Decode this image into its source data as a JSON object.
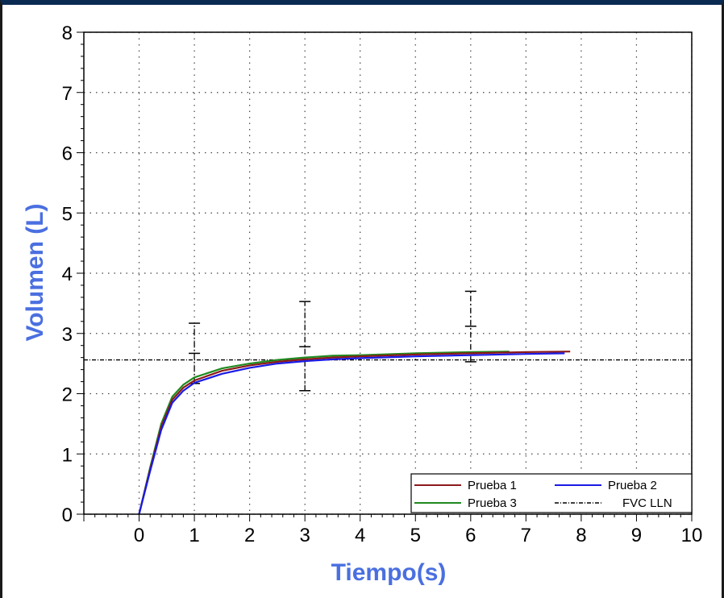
{
  "chart_data": {
    "type": "line",
    "xlabel": "Tiempo(s)",
    "ylabel": "Volumen (L)",
    "xlim": [
      -1,
      10
    ],
    "ylim": [
      0,
      8
    ],
    "x_ticks": [
      "0",
      "1",
      "2",
      "3",
      "4",
      "5",
      "6",
      "7",
      "8",
      "9",
      "10"
    ],
    "y_ticks": [
      "0",
      "1",
      "2",
      "3",
      "4",
      "5",
      "6",
      "7",
      "8"
    ],
    "grid": true,
    "legend_position": "bottom-right",
    "series": [
      {
        "name": "Prueba 1",
        "color": "#8b1a1a",
        "x": [
          0,
          0.2,
          0.4,
          0.6,
          0.8,
          1.0,
          1.5,
          2.0,
          2.5,
          3.0,
          3.5,
          4.0,
          5.0,
          6.0,
          7.0,
          7.8
        ],
        "y": [
          0,
          0.75,
          1.45,
          1.9,
          2.1,
          2.22,
          2.38,
          2.47,
          2.53,
          2.57,
          2.6,
          2.62,
          2.65,
          2.67,
          2.69,
          2.7
        ]
      },
      {
        "name": "Prueba 2",
        "color": "#1a1ae6",
        "x": [
          0,
          0.2,
          0.4,
          0.6,
          0.8,
          1.0,
          1.5,
          2.0,
          2.5,
          3.0,
          3.5,
          4.0,
          5.0,
          6.0,
          7.0,
          7.7
        ],
        "y": [
          0,
          0.72,
          1.4,
          1.85,
          2.05,
          2.18,
          2.33,
          2.43,
          2.5,
          2.54,
          2.57,
          2.59,
          2.62,
          2.64,
          2.66,
          2.67
        ]
      },
      {
        "name": "Prueba 3",
        "color": "#1f8a1f",
        "x": [
          0,
          0.2,
          0.4,
          0.6,
          0.8,
          1.0,
          1.5,
          2.0,
          2.5,
          3.0,
          3.5,
          4.0,
          5.0,
          6.0,
          6.7
        ],
        "y": [
          0,
          0.78,
          1.5,
          1.95,
          2.15,
          2.27,
          2.42,
          2.5,
          2.56,
          2.6,
          2.63,
          2.64,
          2.67,
          2.69,
          2.7
        ]
      },
      {
        "name": "FVC LLN",
        "color": "#000000",
        "x": [
          -1,
          10
        ],
        "y": [
          2.56,
          2.56
        ]
      }
    ],
    "error_bars": [
      {
        "x": 1,
        "low": 2.17,
        "mid": 2.67,
        "high": 3.17
      },
      {
        "x": 3,
        "low": 2.05,
        "mid": 2.78,
        "high": 3.53
      },
      {
        "x": 6,
        "low": 2.53,
        "mid": 3.12,
        "high": 3.7
      }
    ]
  }
}
